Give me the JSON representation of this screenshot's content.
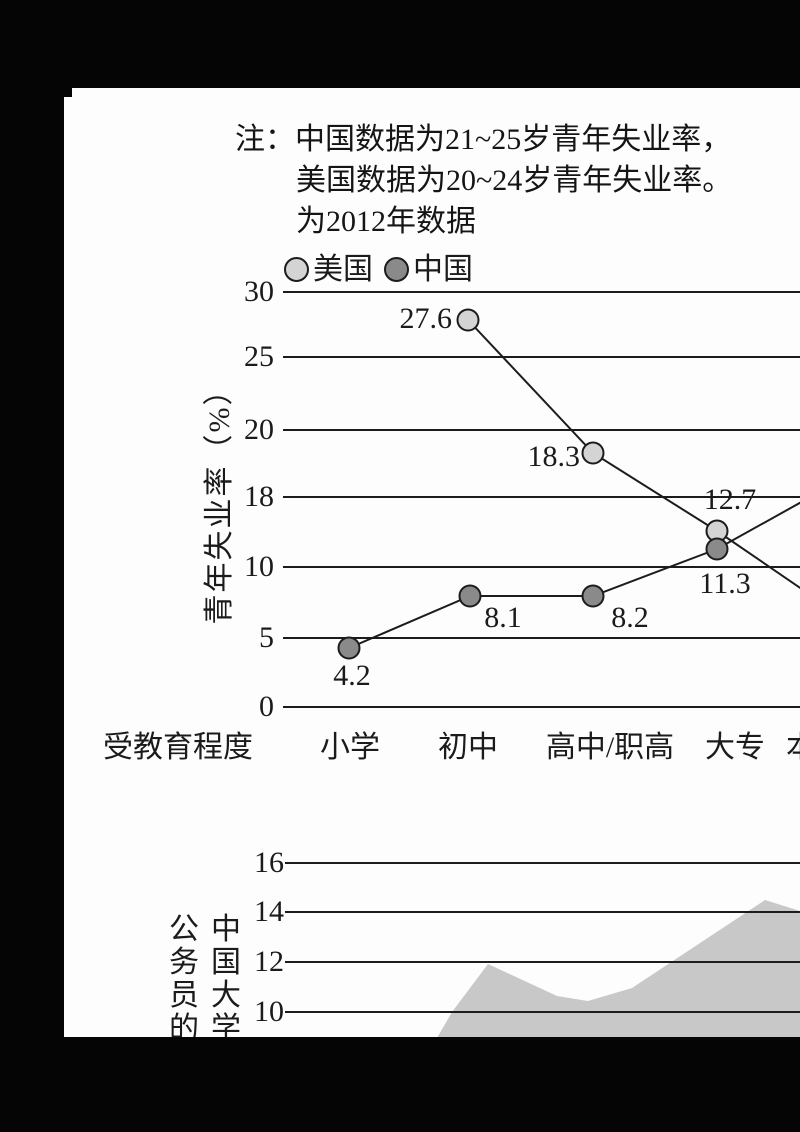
{
  "note": {
    "lines": [
      "注：中国数据为21~25岁青年失业率，",
      "美国数据为20~24岁青年失业率。",
      "为2012年数据"
    ]
  },
  "colors": {
    "panel_bg": "#fdfdfd",
    "frame": "#050505",
    "line": "#1c1c1c",
    "grid": "#1c1c1c",
    "us_fill": "#d4d4d4",
    "cn_fill": "#8a8a8a",
    "area_fill": "#c8c8c8",
    "text": "#1b1b1b"
  },
  "chart_data": [
    {
      "type": "line",
      "title": "",
      "xlabel": "受教育程度",
      "ylabel": "青年失业率（%）",
      "yticks": [
        "30",
        "25",
        "20",
        "18",
        "10",
        "5",
        "0"
      ],
      "categories": [
        "小学",
        "初中",
        "高中/职高",
        "大专",
        "本"
      ],
      "legend_position": "top",
      "grid": "horizontal",
      "series": [
        {
          "name": "美国",
          "color": "#d4d4d4",
          "values": [
            null,
            27.6,
            18.3,
            12.7,
            null
          ]
        },
        {
          "name": "中国",
          "color": "#8a8a8a",
          "values": [
            4.2,
            8.1,
            8.2,
            11.3,
            null
          ]
        }
      ]
    },
    {
      "type": "area",
      "title": "",
      "yticks": [
        "16",
        "14",
        "12",
        "10"
      ],
      "ylabel_columns": [
        "中国大学",
        "公务员的"
      ],
      "grid": "horizontal",
      "series": [
        {
          "name": "",
          "color": "#c8c8c8",
          "values_estimated": [
            8.9,
            11.9,
            10.5,
            10.4,
            10.9,
            14.6,
            14.2
          ]
        }
      ]
    }
  ]
}
